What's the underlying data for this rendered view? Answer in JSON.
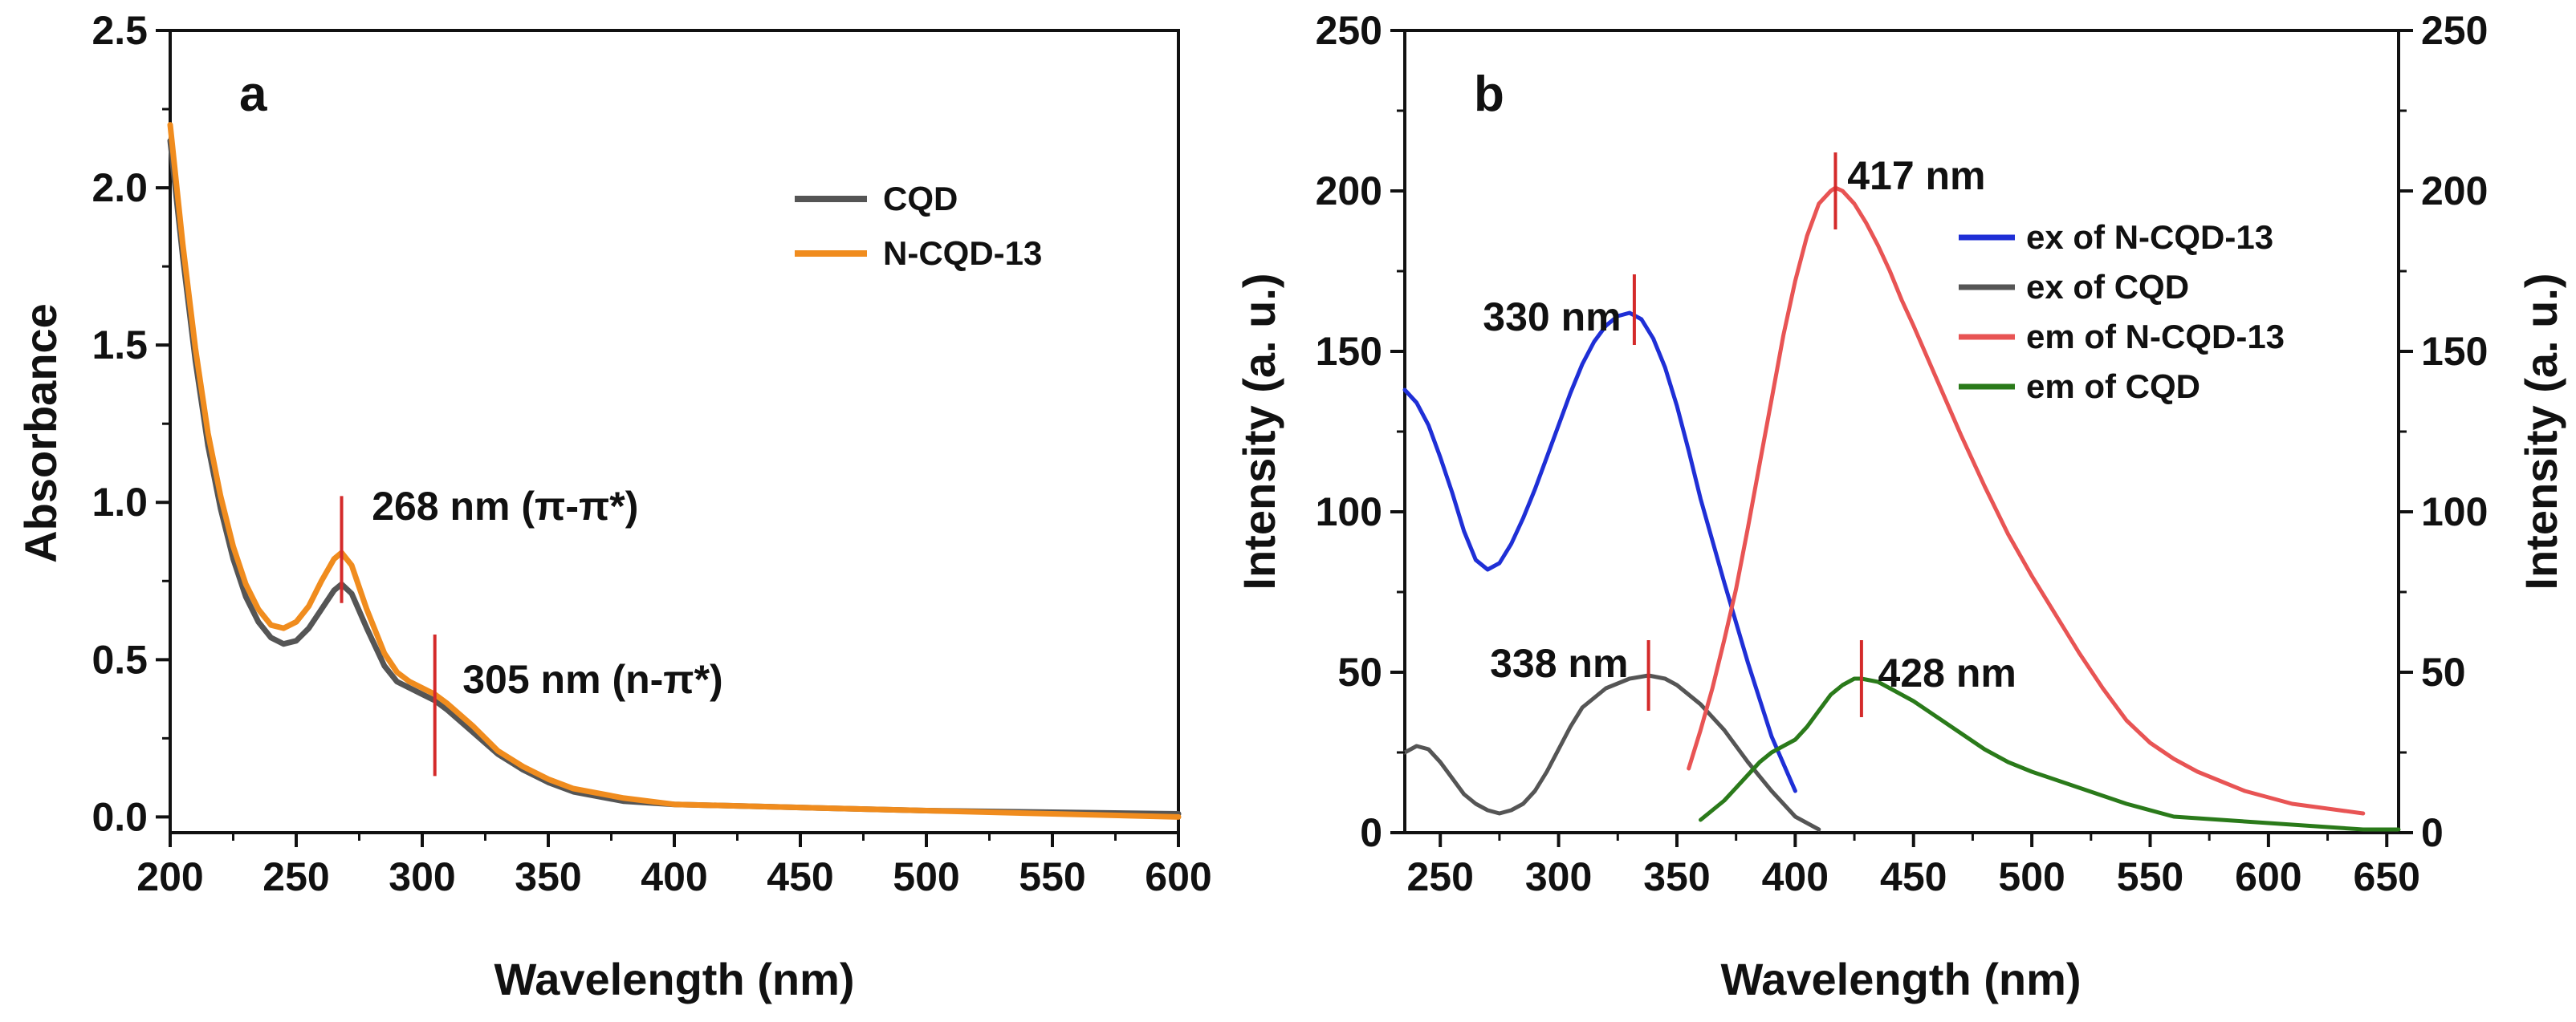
{
  "chart_data": [
    {
      "panel_label": "a",
      "type": "line",
      "xlabel": "Wavelength (nm)",
      "ylabel": "Absorbance",
      "xlim": [
        200,
        600
      ],
      "ylim": [
        -0.05,
        2.5
      ],
      "xticks": [
        200,
        250,
        300,
        350,
        400,
        450,
        500,
        550,
        600
      ],
      "xtick_labels": [
        "200",
        "250",
        "300",
        "350",
        "400",
        "450",
        "500",
        "550",
        "600"
      ],
      "yticks": [
        0.0,
        0.5,
        1.0,
        1.5,
        2.0,
        2.5
      ],
      "ytick_labels": [
        "0.0",
        "0.5",
        "1.0",
        "1.5",
        "2.0",
        "2.5"
      ],
      "legend": [
        "CQD",
        "N-CQD-13"
      ],
      "series": [
        {
          "name": "CQD",
          "color": "#555555",
          "x": [
            200,
            205,
            210,
            215,
            220,
            225,
            230,
            235,
            240,
            245,
            250,
            255,
            260,
            265,
            268,
            272,
            278,
            285,
            290,
            295,
            300,
            305,
            310,
            320,
            330,
            340,
            350,
            360,
            380,
            400,
            450,
            500,
            550,
            600
          ],
          "y": [
            2.15,
            1.78,
            1.45,
            1.18,
            0.98,
            0.82,
            0.7,
            0.62,
            0.57,
            0.55,
            0.56,
            0.6,
            0.66,
            0.72,
            0.74,
            0.71,
            0.6,
            0.48,
            0.43,
            0.41,
            0.39,
            0.37,
            0.34,
            0.27,
            0.2,
            0.15,
            0.11,
            0.08,
            0.05,
            0.04,
            0.03,
            0.02,
            0.015,
            0.01
          ]
        },
        {
          "name": "N-CQD-13",
          "color": "#f08c1e",
          "x": [
            200,
            205,
            210,
            215,
            220,
            225,
            230,
            235,
            240,
            245,
            250,
            255,
            260,
            265,
            268,
            272,
            278,
            285,
            290,
            295,
            300,
            305,
            310,
            320,
            330,
            340,
            350,
            360,
            380,
            400,
            450,
            500,
            550,
            600
          ],
          "y": [
            2.2,
            1.82,
            1.49,
            1.22,
            1.02,
            0.86,
            0.74,
            0.66,
            0.61,
            0.6,
            0.62,
            0.67,
            0.75,
            0.82,
            0.84,
            0.8,
            0.66,
            0.52,
            0.46,
            0.43,
            0.41,
            0.39,
            0.36,
            0.29,
            0.21,
            0.16,
            0.12,
            0.09,
            0.06,
            0.04,
            0.03,
            0.02,
            0.01,
            0.0
          ]
        }
      ],
      "annotations": [
        {
          "text": "268 nm (π-π*)",
          "x": 268,
          "y_low": 0.68,
          "y_high": 1.02,
          "label_x": 280,
          "label_y": 0.99
        },
        {
          "text": "305 nm (n-π*)",
          "x": 305,
          "y_low": 0.13,
          "y_high": 0.58,
          "label_x": 316,
          "label_y": 0.44
        }
      ]
    },
    {
      "panel_label": "b",
      "type": "line",
      "xlabel": "Wavelength (nm)",
      "ylabel": "Intensity (a. u.)",
      "ylabel_right": "Intensity (a. u.)",
      "xlim": [
        235,
        655
      ],
      "ylim": [
        0,
        250
      ],
      "xticks": [
        250,
        300,
        350,
        400,
        450,
        500,
        550,
        600,
        650
      ],
      "xtick_labels": [
        "250",
        "300",
        "350",
        "400",
        "450",
        "500",
        "550",
        "600",
        "650"
      ],
      "yticks": [
        0,
        50,
        100,
        150,
        200,
        250
      ],
      "ytick_labels": [
        "0",
        "50",
        "100",
        "150",
        "200",
        "250"
      ],
      "legend": [
        "ex of N-CQD-13",
        "ex of CQD",
        "em of N-CQD-13",
        "em of CQD"
      ],
      "series": [
        {
          "name": "ex of N-CQD-13",
          "color": "#1f2fd6",
          "x": [
            235,
            240,
            245,
            250,
            255,
            260,
            265,
            270,
            275,
            280,
            285,
            290,
            295,
            300,
            305,
            310,
            315,
            320,
            325,
            330,
            335,
            340,
            345,
            350,
            355,
            360,
            370,
            380,
            390,
            400
          ],
          "y": [
            138,
            134,
            127,
            117,
            106,
            94,
            85,
            82,
            84,
            90,
            98,
            107,
            117,
            127,
            137,
            146,
            153,
            158,
            161,
            162,
            160,
            154,
            145,
            133,
            119,
            104,
            78,
            53,
            30,
            13
          ]
        },
        {
          "name": "ex of CQD",
          "color": "#555555",
          "x": [
            235,
            240,
            245,
            250,
            255,
            260,
            265,
            270,
            275,
            280,
            285,
            290,
            295,
            300,
            305,
            310,
            320,
            330,
            338,
            345,
            350,
            360,
            370,
            380,
            390,
            400,
            410
          ],
          "y": [
            25,
            27,
            26,
            22,
            17,
            12,
            9,
            7,
            6,
            7,
            9,
            13,
            19,
            26,
            33,
            39,
            45,
            48,
            49,
            48,
            46,
            40,
            32,
            22,
            13,
            5,
            1
          ]
        },
        {
          "name": "em of N-CQD-13",
          "color": "#e85454",
          "x": [
            355,
            360,
            365,
            370,
            375,
            380,
            385,
            390,
            395,
            400,
            405,
            410,
            415,
            417,
            420,
            425,
            430,
            435,
            440,
            445,
            450,
            460,
            470,
            480,
            490,
            500,
            510,
            520,
            530,
            540,
            550,
            560,
            570,
            580,
            590,
            600,
            610,
            620,
            630,
            640
          ],
          "y": [
            20,
            32,
            45,
            60,
            76,
            95,
            115,
            135,
            155,
            172,
            186,
            196,
            200,
            201,
            200,
            196,
            190,
            183,
            175,
            166,
            158,
            141,
            124,
            108,
            93,
            80,
            68,
            56,
            45,
            35,
            28,
            23,
            19,
            16,
            13,
            11,
            9,
            8,
            7,
            6
          ]
        },
        {
          "name": "em of CQD",
          "color": "#2a7a1a",
          "x": [
            360,
            365,
            370,
            375,
            380,
            385,
            390,
            395,
            400,
            405,
            410,
            415,
            420,
            425,
            428,
            435,
            440,
            450,
            460,
            470,
            480,
            490,
            500,
            520,
            540,
            560,
            580,
            600,
            620,
            640,
            655
          ],
          "y": [
            4,
            7,
            10,
            14,
            18,
            22,
            25,
            27,
            29,
            33,
            38,
            43,
            46,
            48,
            48,
            47,
            45,
            41,
            36,
            31,
            26,
            22,
            19,
            14,
            9,
            5,
            4,
            3,
            2,
            1,
            1
          ]
        }
      ],
      "annotations": [
        {
          "text": "330 nm",
          "x": 332,
          "y_low": 152,
          "y_high": 174,
          "label_x": 268,
          "label_y": 161
        },
        {
          "text": "417 nm",
          "x": 417,
          "y_low": 188,
          "y_high": 212,
          "label_x": 422,
          "label_y": 205
        },
        {
          "text": "338 nm",
          "x": 338,
          "y_low": 38,
          "y_high": 60,
          "label_x": 271,
          "label_y": 53
        },
        {
          "text": "428 nm",
          "x": 428,
          "y_low": 36,
          "y_high": 60,
          "label_x": 435,
          "label_y": 50
        }
      ]
    }
  ]
}
